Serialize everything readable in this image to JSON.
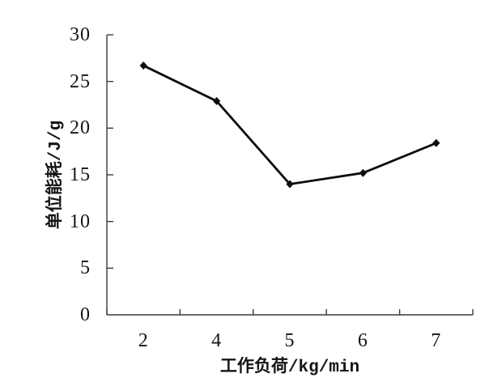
{
  "chart_data": {
    "type": "line",
    "title": "",
    "categories": [
      "2",
      "4",
      "5",
      "6",
      "7"
    ],
    "series": [
      {
        "name": "单位能耗",
        "values": [
          26.7,
          22.9,
          14.0,
          15.2,
          18.4
        ]
      }
    ],
    "xlabel": "工作负荷/kg/min",
    "ylabel": "单位能耗/J/g",
    "ylim": [
      0,
      30
    ],
    "yticks": [
      0,
      5,
      10,
      15,
      20,
      25,
      30
    ],
    "grid": false,
    "legend": "none",
    "marker": "diamond",
    "colors": {
      "line": "#0d0d0d",
      "marker": "#0d0d0d",
      "axis": "#3a3a3a",
      "text": "#141414",
      "background": "#ffffff"
    }
  }
}
